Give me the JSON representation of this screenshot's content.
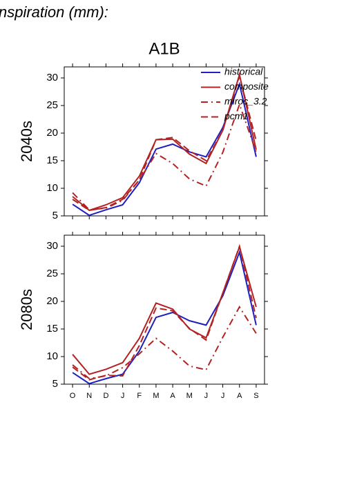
{
  "header": {
    "title": "nspiration (mm):",
    "subtitle": "A1B"
  },
  "chart_data": [
    {
      "type": "line",
      "y_label": "2040s",
      "categories": [
        null,
        null,
        null,
        null,
        null,
        null,
        null,
        null,
        null,
        null,
        null,
        null
      ],
      "ylim": [
        5,
        32
      ],
      "yticks": [
        5,
        10,
        15,
        20,
        25,
        30
      ],
      "legend": "upper right",
      "series": [
        {
          "name": "historical",
          "color": "#1f1fbf",
          "style": "solid",
          "values": [
            7.1,
            5.1,
            6.1,
            7.0,
            11.0,
            17.1,
            18.0,
            16.6,
            15.7,
            21.0,
            28.9,
            15.7
          ]
        },
        {
          "name": "composite",
          "color": "#b22222",
          "style": "solid",
          "values": [
            8.5,
            6.0,
            7.0,
            8.3,
            12.2,
            18.8,
            18.9,
            16.2,
            14.5,
            20.5,
            30.6,
            17.0
          ]
        },
        {
          "name": "miroc_3.2",
          "color": "#b22222",
          "style": "dashdot",
          "values": [
            9.2,
            6.1,
            6.4,
            7.8,
            11.5,
            16.3,
            14.5,
            11.7,
            10.4,
            16.5,
            25.2,
            16.6
          ]
        },
        {
          "name": "pcm1",
          "color": "#b22222",
          "style": "dashed",
          "values": [
            8.0,
            6.0,
            6.5,
            8.0,
            11.5,
            18.8,
            19.2,
            16.8,
            15.0,
            20.5,
            30.3,
            18.6
          ]
        }
      ]
    },
    {
      "type": "line",
      "y_label": "2080s",
      "categories": [
        "O",
        "N",
        "D",
        "J",
        "F",
        "M",
        "A",
        "M",
        "J",
        "J",
        "A",
        "S"
      ],
      "ylim": [
        5,
        32
      ],
      "yticks": [
        5,
        10,
        15,
        20,
        25,
        30
      ],
      "series": [
        {
          "color": "#1f1fbf",
          "style": "solid",
          "values": [
            7.1,
            5.1,
            6.0,
            6.8,
            11.0,
            17.1,
            18.0,
            16.5,
            15.7,
            21.0,
            28.9,
            15.7
          ]
        },
        {
          "color": "#b22222",
          "style": "solid",
          "values": [
            10.4,
            6.8,
            7.7,
            8.9,
            13.3,
            19.7,
            18.6,
            15.0,
            13.4,
            21.5,
            29.9,
            19.0
          ]
        },
        {
          "color": "#b22222",
          "style": "dashdot",
          "values": [
            8.5,
            6.0,
            6.5,
            8.0,
            10.5,
            13.3,
            11.0,
            8.3,
            7.6,
            13.5,
            19.0,
            14.2
          ]
        },
        {
          "color": "#b22222",
          "style": "dashed",
          "values": [
            8.1,
            5.8,
            6.6,
            6.5,
            12.0,
            18.8,
            18.3,
            15.1,
            13.0,
            21.5,
            30.0,
            17.0
          ]
        }
      ]
    }
  ]
}
